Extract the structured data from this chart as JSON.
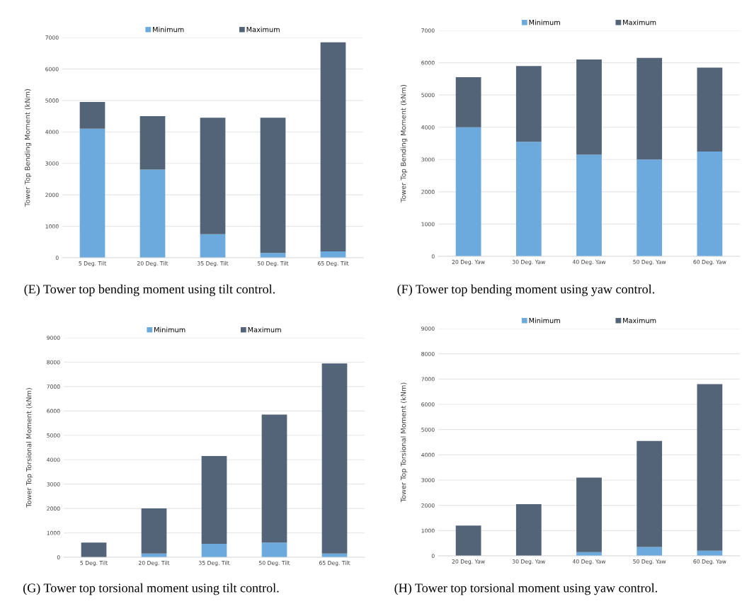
{
  "chart_data": [
    {
      "type": "bar",
      "stacked": true,
      "title": "(E) Tower top bending moment using tilt control.",
      "ylabel": "Tower Top Bending Moment (kNm)",
      "categories": [
        "5 Deg. Tilt",
        "20 Deg. Tilt",
        "35 Deg. Tilt",
        "50 Deg. Tilt",
        "65 Deg. Tilt"
      ],
      "ylim": [
        0,
        7000
      ],
      "yticks": [
        0,
        1000,
        2000,
        3000,
        4000,
        5000,
        6000,
        7000
      ],
      "grid": "y",
      "legend": "top",
      "series": [
        {
          "name": "Minimum",
          "color": "#6caadd",
          "values": [
            4100,
            2800,
            750,
            150,
            200
          ]
        },
        {
          "name": "Maximum",
          "color": "#536479",
          "values": [
            850,
            1700,
            3700,
            4300,
            6650
          ]
        }
      ]
    },
    {
      "type": "bar",
      "stacked": true,
      "title": "(F) Tower top bending moment using yaw control.",
      "ylabel": "Tower Top Bending Moment (kNm)",
      "categories": [
        "20 Deg. Yaw",
        "30 Deg. Yaw",
        "40 Deg. Yaw",
        "50 Deg. Yaw",
        "60 Deg. Yaw"
      ],
      "ylim": [
        0,
        7000
      ],
      "yticks": [
        0,
        1000,
        2000,
        3000,
        4000,
        5000,
        6000,
        7000
      ],
      "grid": "y",
      "legend": "top",
      "series": [
        {
          "name": "Minimum",
          "color": "#6caadd",
          "values": [
            4000,
            3550,
            3150,
            3000,
            3250
          ]
        },
        {
          "name": "Maximum",
          "color": "#536479",
          "values": [
            1550,
            2350,
            2950,
            3150,
            2600
          ]
        }
      ]
    },
    {
      "type": "bar",
      "stacked": true,
      "title": "(G) Tower top torsional moment using tilt control.",
      "ylabel": "Tower Top Torsional Moment (kNm)",
      "categories": [
        "5 Deg. Tilt",
        "20 Deg. Tilt",
        "35 Deg. Tilt",
        "50 Deg. Tilt",
        "65 Deg. Tilt"
      ],
      "ylim": [
        0,
        9000
      ],
      "yticks": [
        0,
        1000,
        2000,
        3000,
        4000,
        5000,
        6000,
        7000,
        8000,
        9000
      ],
      "grid": "y",
      "legend": "top",
      "series": [
        {
          "name": "Minimum",
          "color": "#6caadd",
          "values": [
            0,
            150,
            550,
            600,
            150
          ]
        },
        {
          "name": "Maximum",
          "color": "#536479",
          "values": [
            600,
            1850,
            3600,
            5250,
            7800
          ]
        }
      ]
    },
    {
      "type": "bar",
      "stacked": true,
      "title": "(H) Tower top torsional moment using yaw control.",
      "ylabel": "Tower Top Torsional Moment (kNm)",
      "categories": [
        "20 Deg. Yaw",
        "30 Deg. Yaw",
        "40 Deg. Yaw",
        "50 Deg. Yaw",
        "60 Deg. Yaw"
      ],
      "ylim": [
        0,
        9000
      ],
      "yticks": [
        0,
        1000,
        2000,
        3000,
        4000,
        5000,
        6000,
        7000,
        8000,
        9000
      ],
      "grid": "y",
      "legend": "top",
      "series": [
        {
          "name": "Minimum",
          "color": "#6caadd",
          "values": [
            0,
            null,
            150,
            350,
            200
          ]
        },
        {
          "name": "Maximum",
          "color": "#536479",
          "values": [
            1200,
            2050,
            2950,
            4200,
            6600
          ]
        }
      ]
    }
  ]
}
